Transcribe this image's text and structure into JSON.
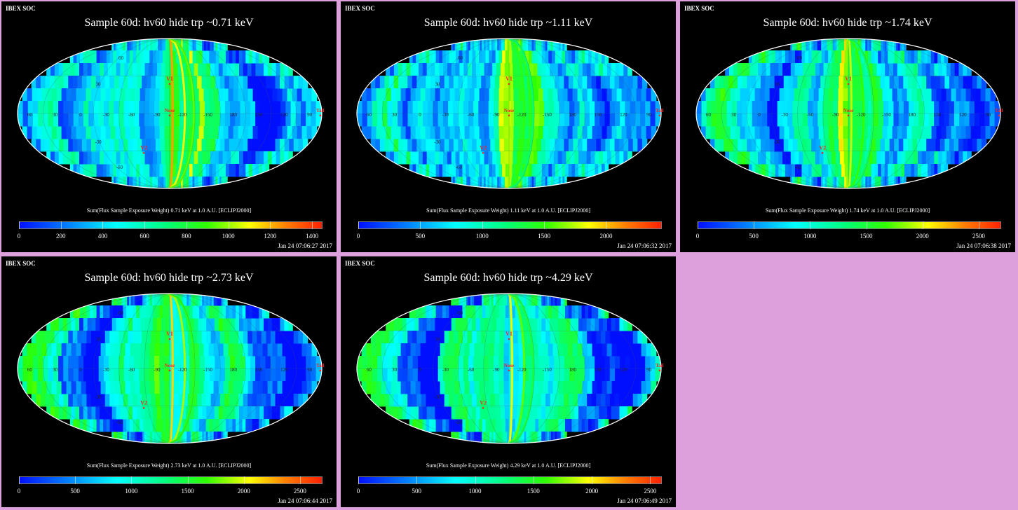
{
  "colors": {
    "background": "#dda0dd",
    "panel": "#000000",
    "text": "#ffffff",
    "marker": "#ff2020"
  },
  "map_labels": {
    "v1": "V1",
    "v2": "V2",
    "nose": "Nose",
    "tail": "Tail",
    "lon_ticks": [
      "60",
      "30",
      "0",
      "-30",
      "-60",
      "-90",
      "-120",
      "-150",
      "180",
      "150",
      "120",
      "90"
    ],
    "lat_ticks": [
      "60",
      "30",
      "-30",
      "-60"
    ]
  },
  "chart_data": [
    {
      "type": "heatmap",
      "header": "IBEX SOC",
      "title": "Sample 60d: hv60 hide trp ~0.71 keV",
      "colorbar_label": "Sum(Flux Sample Exposure Weight) 0.71 keV at 1.0 A.U. [ECLIPJ2000]",
      "colorbar_range": [
        0,
        1450
      ],
      "colorbar_ticks": [
        "0",
        "200",
        "400",
        "600",
        "800",
        "1000",
        "1200",
        "1400"
      ],
      "colorbar_tick_values": [
        0,
        200,
        400,
        600,
        800,
        1000,
        1200,
        1400
      ],
      "timestamp": "Jan 24 07:06:27 2017",
      "ribbon_level": 0.85
    },
    {
      "type": "heatmap",
      "header": "IBEX SOC",
      "title": "Sample 60d: hv60 hide trp ~1.11 keV",
      "colorbar_label": "Sum(Flux Sample Exposure Weight) 1.11 keV at 1.0 A.U. [ECLIPJ2000]",
      "colorbar_range": [
        0,
        2450
      ],
      "colorbar_ticks": [
        "0",
        "500",
        "1000",
        "1500",
        "2000"
      ],
      "colorbar_tick_values": [
        0,
        500,
        1000,
        1500,
        2000
      ],
      "timestamp": "Jan 24 07:06:32 2017",
      "ribbon_level": 0.7
    },
    {
      "type": "heatmap",
      "header": "IBEX SOC",
      "title": "Sample 60d: hv60 hide trp ~1.74 keV",
      "colorbar_label": "Sum(Flux Sample Exposure Weight) 1.74 keV at 1.0 A.U. [ECLIPJ2000]",
      "colorbar_range": [
        0,
        2700
      ],
      "colorbar_ticks": [
        "0",
        "500",
        "1000",
        "1500",
        "2000",
        "2500"
      ],
      "colorbar_tick_values": [
        0,
        500,
        1000,
        1500,
        2000,
        2500
      ],
      "timestamp": "Jan 24 07:06:38 2017",
      "ribbon_level": 0.72
    },
    {
      "type": "heatmap",
      "header": "IBEX SOC",
      "title": "Sample 60d: hv60 hide trp ~2.73 keV",
      "colorbar_label": "Sum(Flux Sample Exposure Weight) 2.73 keV at 1.0 A.U. [ECLIPJ2000]",
      "colorbar_range": [
        0,
        2700
      ],
      "colorbar_ticks": [
        "0",
        "500",
        "1000",
        "1500",
        "2000",
        "2500"
      ],
      "colorbar_tick_values": [
        0,
        500,
        1000,
        1500,
        2000,
        2500
      ],
      "timestamp": "Jan 24 07:06:44 2017",
      "ribbon_level": 0.8
    },
    {
      "type": "heatmap",
      "header": "IBEX SOC",
      "title": "Sample 60d: hv60 hide trp ~4.29 keV",
      "colorbar_label": "Sum(Flux Sample Exposure Weight) 4.29 keV at 1.0 A.U. [ECLIPJ2000]",
      "colorbar_range": [
        0,
        2600
      ],
      "colorbar_ticks": [
        "0",
        "500",
        "1000",
        "1500",
        "2000",
        "2500"
      ],
      "colorbar_tick_values": [
        0,
        500,
        1000,
        1500,
        2000,
        2500
      ],
      "timestamp": "Jan 24 07:06:49 2017",
      "ribbon_level": 0.75
    }
  ]
}
